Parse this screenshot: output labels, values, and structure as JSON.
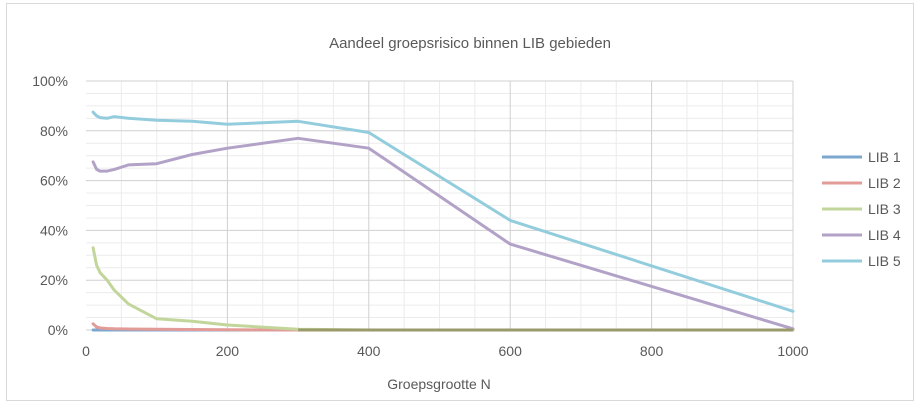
{
  "chart_data": {
    "type": "line",
    "title": "Aandeel groepsrisico binnen LIB gebieden",
    "xlabel": "Groepsgrootte N",
    "ylabel": "",
    "xlim": [
      0,
      1000
    ],
    "ylim": [
      0,
      100
    ],
    "x_ticks": [
      0,
      200,
      400,
      600,
      800,
      1000
    ],
    "x_tick_labels": [
      "0",
      "200",
      "400",
      "600",
      "800",
      "1000"
    ],
    "y_ticks": [
      0,
      20,
      40,
      60,
      80,
      100
    ],
    "y_tick_labels": [
      "0%",
      "20%",
      "40%",
      "60%",
      "80%",
      "100%"
    ],
    "grid": true,
    "legend_position": "right",
    "series": [
      {
        "name": "LIB 1",
        "color": "#7ca7cf",
        "points": [
          [
            10,
            0
          ],
          [
            20,
            0
          ],
          [
            30,
            0
          ],
          [
            40,
            0
          ],
          [
            60,
            0
          ],
          [
            100,
            0
          ],
          [
            150,
            0
          ],
          [
            200,
            0
          ],
          [
            300,
            0
          ],
          [
            400,
            0
          ],
          [
            600,
            0
          ],
          [
            1000,
            0
          ]
        ]
      },
      {
        "name": "LIB 2",
        "color": "#e39b98",
        "points": [
          [
            10,
            2.5
          ],
          [
            15,
            1.2
          ],
          [
            20,
            0.8
          ],
          [
            30,
            0.6
          ],
          [
            40,
            0.5
          ],
          [
            60,
            0.4
          ],
          [
            100,
            0.3
          ],
          [
            150,
            0.2
          ],
          [
            200,
            0.1
          ],
          [
            300,
            0
          ],
          [
            400,
            0
          ],
          [
            600,
            0
          ],
          [
            1000,
            0
          ]
        ]
      },
      {
        "name": "LIB 3",
        "color": "#c2d69b",
        "points": [
          [
            10,
            33
          ],
          [
            15,
            26
          ],
          [
            20,
            23
          ],
          [
            30,
            20
          ],
          [
            40,
            16
          ],
          [
            60,
            10.5
          ],
          [
            100,
            4.5
          ],
          [
            150,
            3.5
          ],
          [
            200,
            2
          ],
          [
            300,
            0.3
          ],
          [
            400,
            0
          ],
          [
            600,
            0
          ],
          [
            1000,
            0
          ]
        ]
      },
      {
        "name": "LIB 4",
        "color": "#b3a2c7",
        "points": [
          [
            10,
            67.5
          ],
          [
            15,
            64.5
          ],
          [
            20,
            63.8
          ],
          [
            30,
            63.8
          ],
          [
            40,
            64.5
          ],
          [
            60,
            66.3
          ],
          [
            100,
            66.8
          ],
          [
            150,
            70.5
          ],
          [
            200,
            73
          ],
          [
            300,
            77
          ],
          [
            400,
            73
          ],
          [
            600,
            34.5
          ],
          [
            1000,
            0.5
          ]
        ]
      },
      {
        "name": "LIB 5",
        "color": "#93cddd",
        "points": [
          [
            10,
            87.5
          ],
          [
            15,
            86
          ],
          [
            20,
            85.3
          ],
          [
            30,
            85
          ],
          [
            40,
            85.7
          ],
          [
            60,
            85
          ],
          [
            100,
            84.2
          ],
          [
            150,
            83.8
          ],
          [
            200,
            82.6
          ],
          [
            300,
            83.8
          ],
          [
            400,
            79.3
          ],
          [
            600,
            44
          ],
          [
            1000,
            7.5
          ]
        ]
      }
    ]
  }
}
